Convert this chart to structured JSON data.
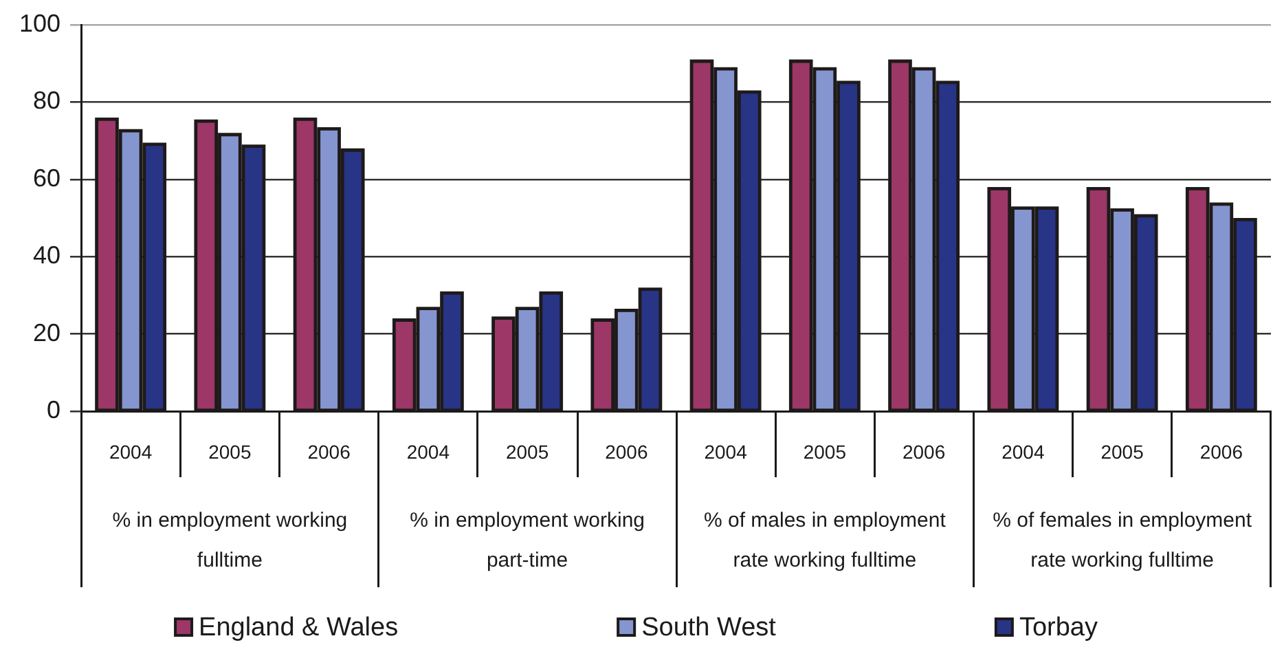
{
  "chart_data": {
    "type": "bar",
    "categories": [
      "2004",
      "2005",
      "2006",
      "2004",
      "2005",
      "2006",
      "2004",
      "2005",
      "2006",
      "2004",
      "2005",
      "2006"
    ],
    "annotations": [
      "% in employment working fulltime",
      "% in employment working part-time",
      "% of males in employment rate working fulltime",
      "% of females in employment rate working fulltime"
    ],
    "series": [
      {
        "name": "England & Wales",
        "color": "#9c3767",
        "values": [
          76,
          75.5,
          76,
          24,
          24.5,
          24,
          91,
          91,
          91,
          58,
          58,
          58
        ]
      },
      {
        "name": "South West",
        "color": "#8595d0",
        "values": [
          73,
          72,
          73.5,
          27,
          27,
          26.5,
          89,
          89,
          89,
          53,
          52.5,
          54
        ]
      },
      {
        "name": "Torbay",
        "color": "#283486",
        "values": [
          69.5,
          69,
          68,
          31,
          31,
          32,
          83,
          85.5,
          85.5,
          53,
          51,
          50
        ]
      }
    ],
    "ylim": [
      0,
      100
    ],
    "yticks": [
      0,
      20,
      40,
      60,
      80,
      100
    ],
    "grid": "y",
    "legend": "bottom"
  }
}
